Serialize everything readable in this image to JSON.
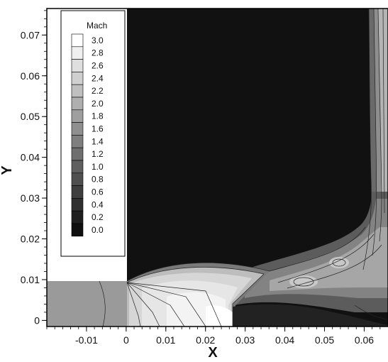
{
  "chart_data": {
    "type": "contour",
    "xlabel": "X",
    "ylabel": "Y",
    "xlim": [
      -0.02,
      0.066
    ],
    "ylim": [
      -0.0015,
      0.0765
    ],
    "x_ticks": [
      -0.01,
      0,
      0.01,
      0.02,
      0.03,
      0.04,
      0.05,
      0.06
    ],
    "x_tick_labels": [
      "-0.01",
      "0",
      "0.01",
      "0.02",
      "0.03",
      "0.04",
      "0.05",
      "0.06"
    ],
    "y_ticks": [
      0,
      0.01,
      0.02,
      0.03,
      0.04,
      0.05,
      0.06,
      0.07
    ],
    "y_tick_labels": [
      "0",
      "0.01",
      "0.02",
      "0.03",
      "0.04",
      "0.05",
      "0.06",
      "0.07"
    ],
    "legend": {
      "title": "Mach",
      "placement": "top-left",
      "levels": [
        3.0,
        2.8,
        2.6,
        2.4,
        2.2,
        2.0,
        1.8,
        1.6,
        1.4,
        1.2,
        1.0,
        0.8,
        0.6,
        0.4,
        0.2,
        0.0
      ],
      "labels": [
        "3.0",
        "2.8",
        "2.6",
        "2.4",
        "2.2",
        "2.0",
        "1.8",
        "1.6",
        "1.4",
        "1.2",
        "1.0",
        "0.8",
        "0.6",
        "0.4",
        "0.2",
        "0.0"
      ]
    },
    "colormap": "grayscale",
    "grid": false
  }
}
